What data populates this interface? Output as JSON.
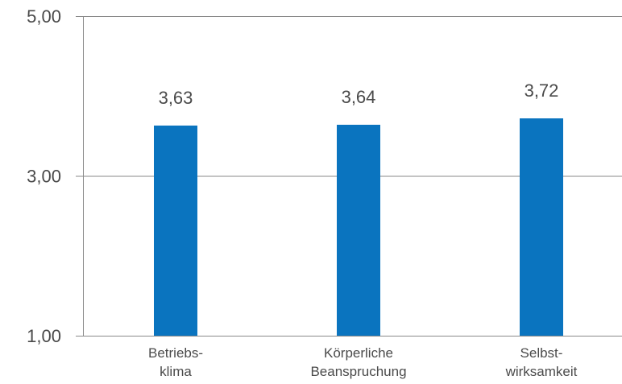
{
  "chart_data": {
    "type": "bar",
    "categories": [
      [
        "Betriebs-",
        "klima"
      ],
      [
        "Körperliche",
        "Beanspruchung"
      ],
      [
        "Selbst-",
        "wirksamkeit"
      ]
    ],
    "values": [
      3.63,
      3.64,
      3.72
    ],
    "data_labels": [
      "3,63",
      "3,64",
      "3,72"
    ],
    "ylim": [
      1,
      5
    ],
    "yticks": [
      1,
      3,
      5
    ],
    "ytick_labels": [
      "1,00",
      "3,00",
      "5,00"
    ],
    "grid": true,
    "bar_color": "#0a74bf",
    "title": "",
    "xlabel": "",
    "ylabel": ""
  }
}
